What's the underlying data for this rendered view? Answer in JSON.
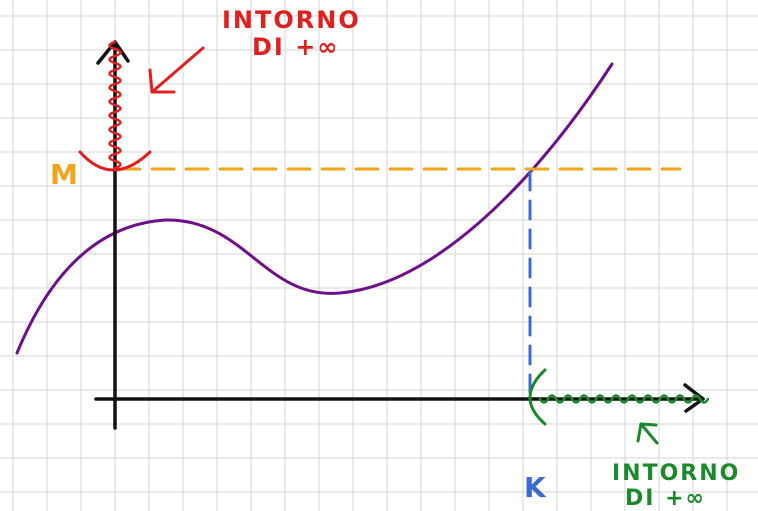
{
  "labels": {
    "y_level": "M",
    "x_level": "K",
    "top_note_line1": "INTORNO",
    "top_note_line2": "DI +∞",
    "bottom_note_line1": "INTORNO",
    "bottom_note_line2": "DI +∞"
  },
  "colors": {
    "grid": "#d4d4d4",
    "axis": "#111111",
    "curve": "#6e0f8c",
    "m_line": "#f2a51b",
    "k_line": "#3c6ad6",
    "top_neighborhood": "#e01f1f",
    "bottom_neighborhood": "#1a8a2a"
  },
  "icons": {
    "top_pointer": "arrow-pointer-icon",
    "bottom_pointer": "arrow-pointer-icon",
    "axis_arrows": "arrowhead-icon"
  }
}
